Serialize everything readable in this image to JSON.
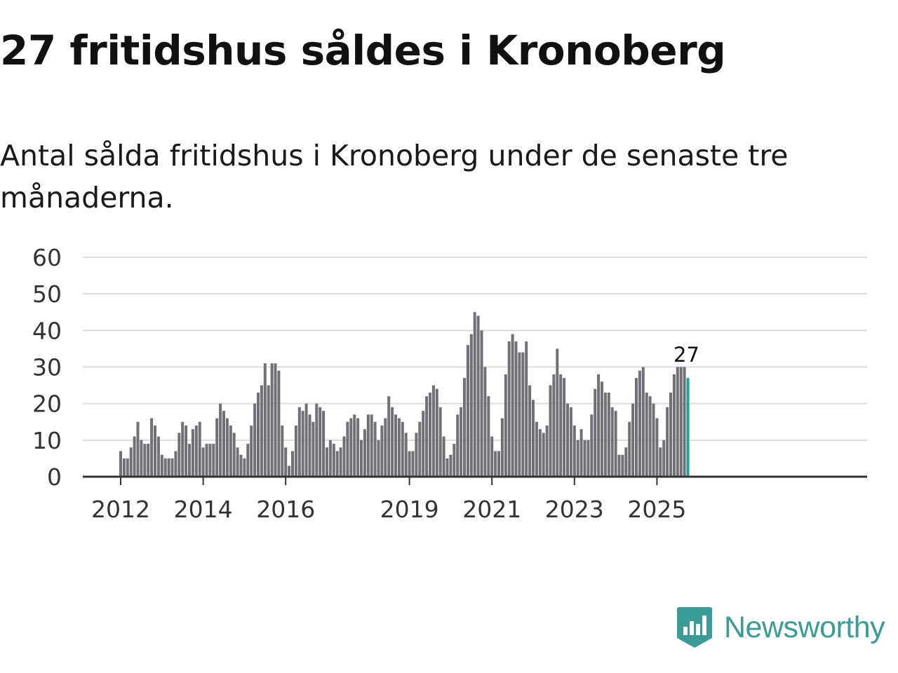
{
  "header": {
    "title": "27 fritidshus såldes i Kronoberg",
    "subtitle": "Antal sålda fritidshus i Kronoberg under de senaste tre månaderna."
  },
  "brand": {
    "name": "Newsworthy",
    "color": "#3a9c96"
  },
  "colors": {
    "bar": "#727077",
    "highlight": "#1aa39a",
    "grid": "#dddddd",
    "axis": "#333333"
  },
  "chart_data": {
    "type": "bar",
    "title": "27 fritidshus såldes i Kronoberg",
    "subtitle": "Antal sålda fritidshus i Kronoberg under de senaste tre månaderna.",
    "xlabel": "",
    "ylabel": "",
    "ylim": [
      0,
      60
    ],
    "yticks": [
      0,
      10,
      20,
      30,
      40,
      50,
      60
    ],
    "grid": true,
    "x_ticks": [
      {
        "label": "2012",
        "index": 0
      },
      {
        "label": "2014",
        "index": 24
      },
      {
        "label": "2016",
        "index": 48
      },
      {
        "label": "2019",
        "index": 84
      },
      {
        "label": "2021",
        "index": 108
      },
      {
        "label": "2023",
        "index": 132
      },
      {
        "label": "2025",
        "index": 156
      }
    ],
    "highlight_index": 165,
    "highlight_label": "27",
    "values": [
      7,
      5,
      5,
      8,
      11,
      15,
      10,
      9,
      9,
      16,
      14,
      11,
      6,
      5,
      5,
      5,
      7,
      12,
      15,
      14,
      9,
      13,
      14,
      15,
      8,
      9,
      9,
      9,
      16,
      20,
      18,
      16,
      14,
      12,
      8,
      6,
      5,
      9,
      14,
      20,
      23,
      25,
      31,
      25,
      31,
      31,
      29,
      14,
      8,
      3,
      7,
      14,
      19,
      18,
      20,
      17,
      15,
      20,
      19,
      18,
      8,
      10,
      9,
      7,
      8,
      11,
      15,
      16,
      17,
      16,
      10,
      13,
      17,
      17,
      15,
      10,
      14,
      16,
      22,
      19,
      17,
      16,
      15,
      12,
      7,
      7,
      12,
      15,
      18,
      22,
      23,
      25,
      24,
      19,
      11,
      5,
      6,
      9,
      17,
      19,
      27,
      36,
      39,
      45,
      44,
      40,
      30,
      22,
      11,
      7,
      7,
      16,
      28,
      37,
      39,
      37,
      34,
      34,
      37,
      25,
      21,
      15,
      13,
      12,
      14,
      25,
      28,
      35,
      28,
      27,
      20,
      19,
      14,
      10,
      13,
      10,
      10,
      17,
      24,
      28,
      26,
      23,
      23,
      19,
      18,
      6,
      6,
      8,
      15,
      20,
      27,
      29,
      30,
      23,
      22,
      20,
      16,
      8,
      10,
      19,
      23,
      28,
      30,
      30,
      30,
      27
    ]
  }
}
